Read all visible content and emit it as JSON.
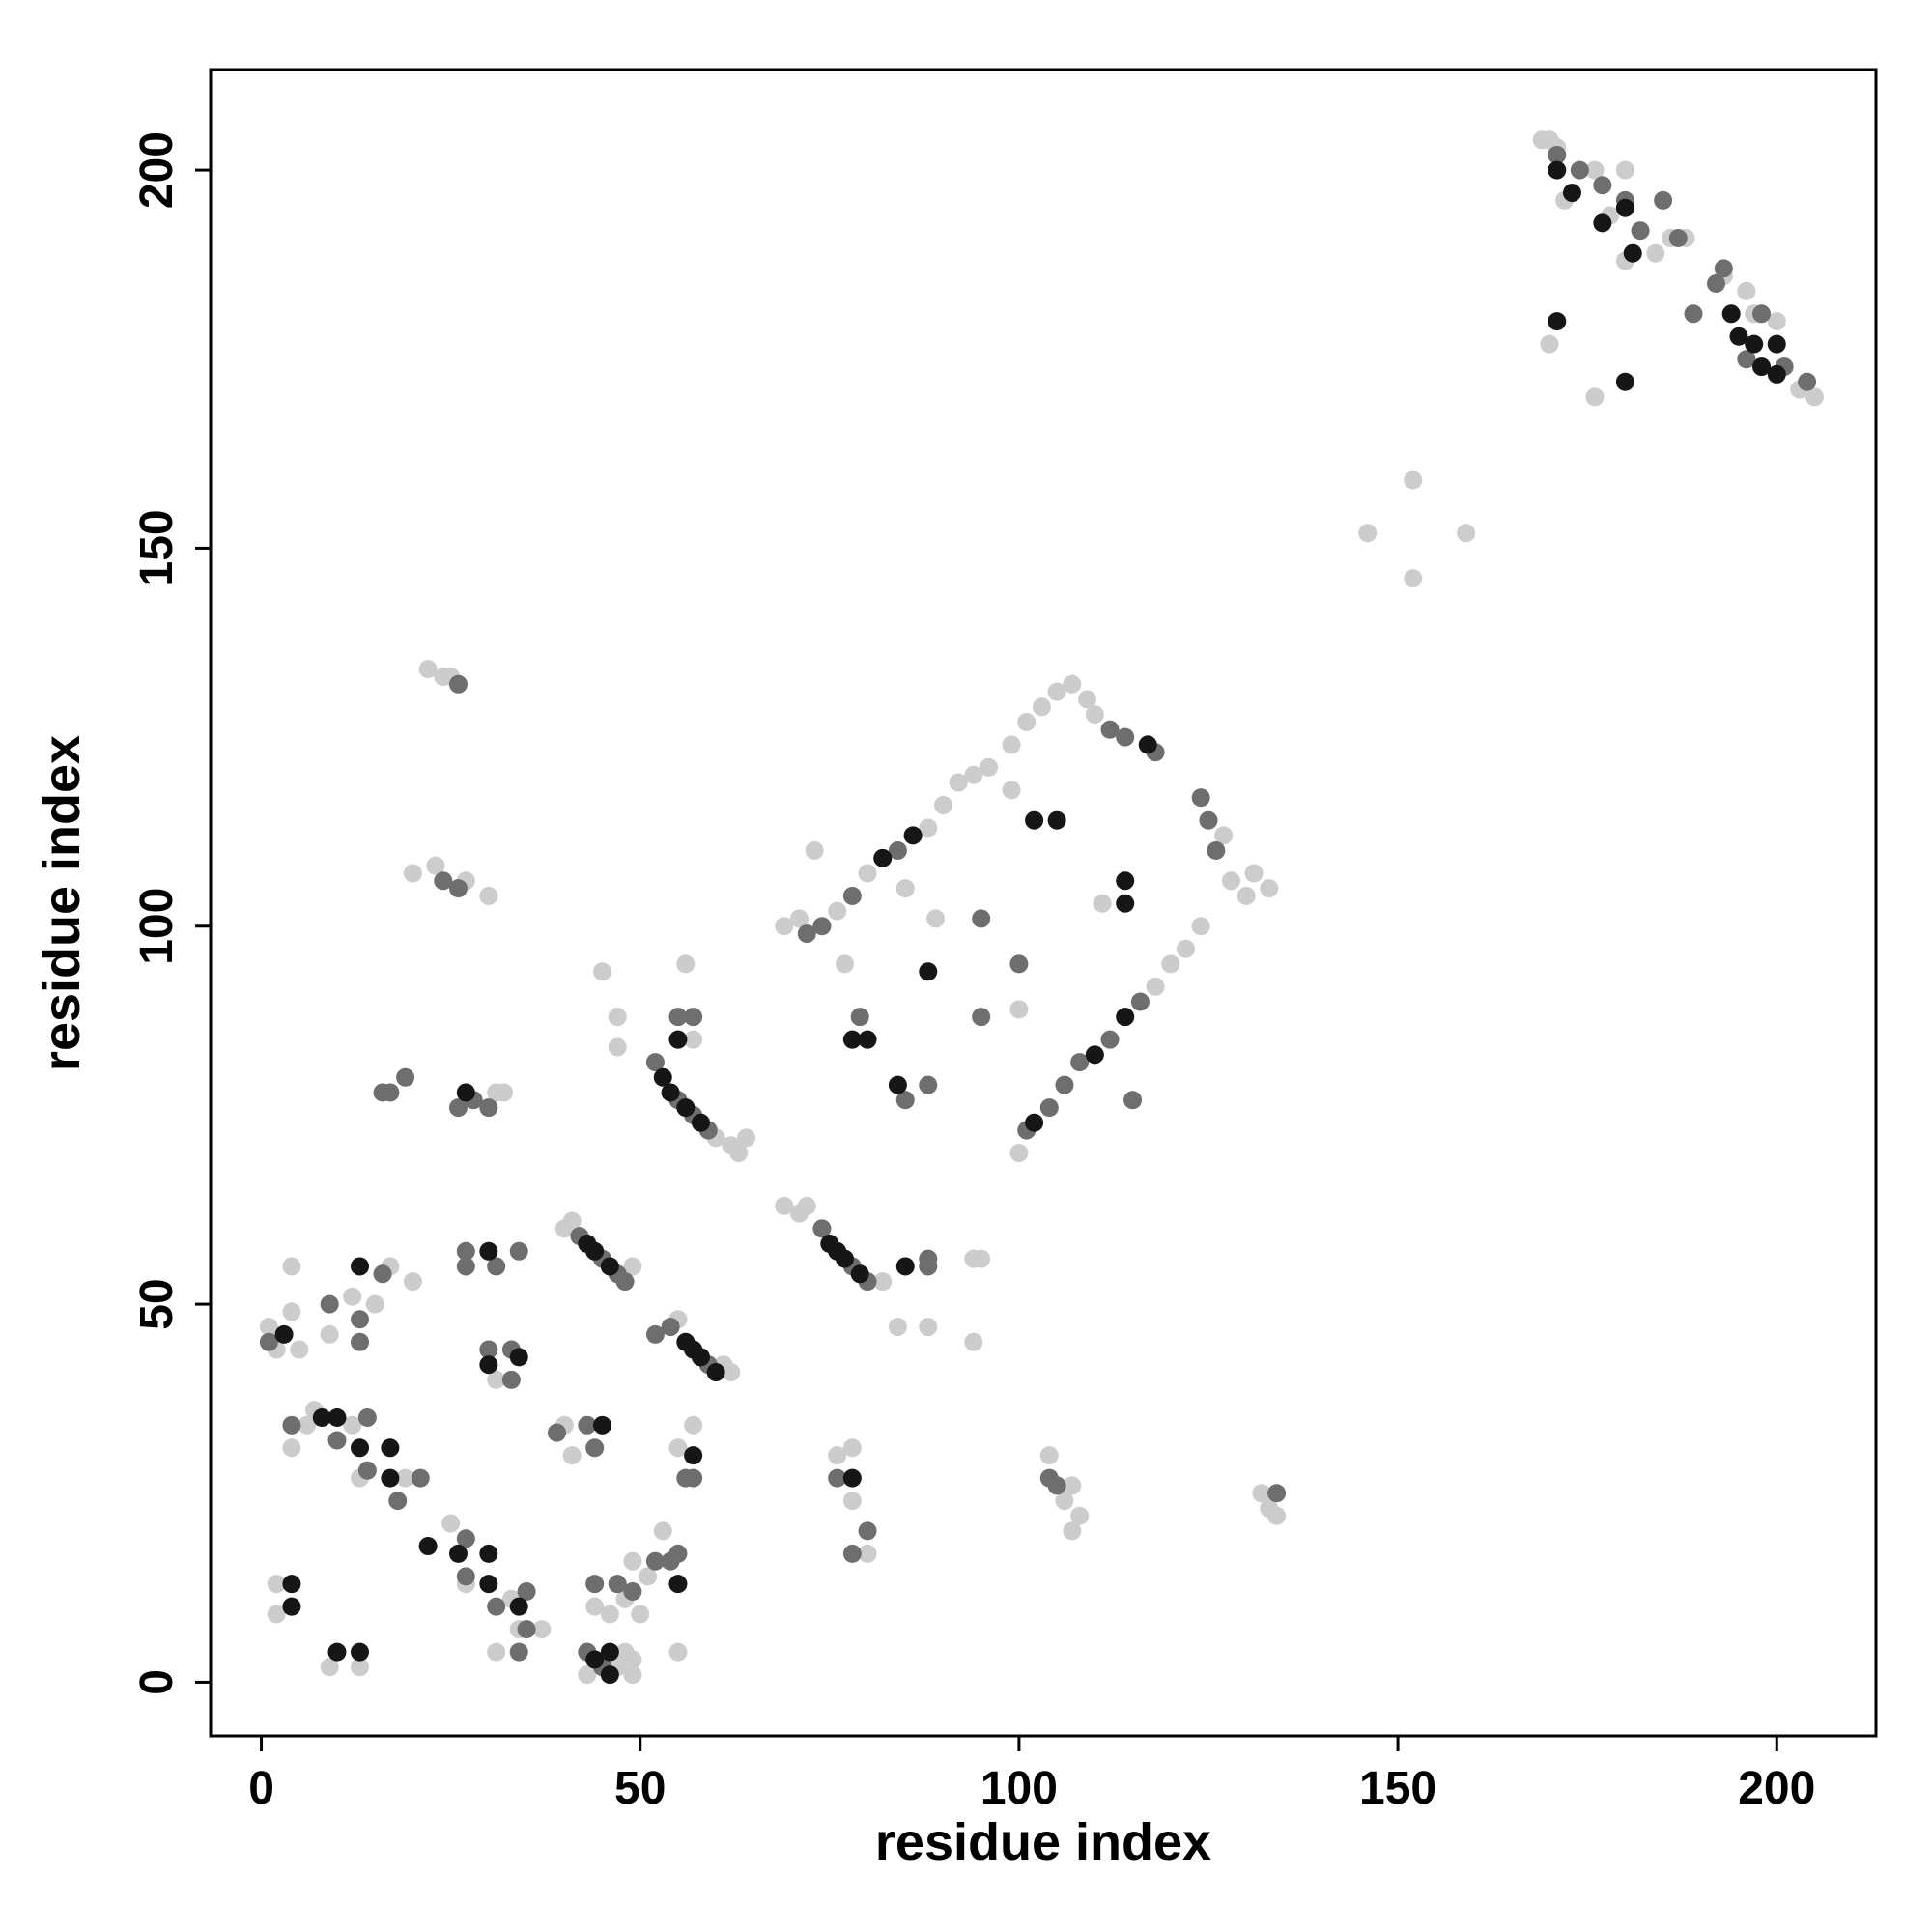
{
  "chart_data": {
    "type": "scatter",
    "xlabel": "residue index",
    "ylabel": "residue index",
    "xlim": [
      -6.7,
      213.1
    ],
    "ylim": [
      -7.1,
      213.3
    ],
    "xticks": [
      0,
      50,
      100,
      150,
      200
    ],
    "yticks": [
      0,
      50,
      100,
      150,
      200
    ],
    "grid": false,
    "series": [
      {
        "color": "#cccccc",
        "x": [
          169,
          170,
          171,
          172,
          176,
          178,
          180,
          184,
          186,
          188,
          193,
          196,
          197,
          200,
          205,
          203,
          170,
          176,
          180,
          146,
          152,
          152,
          159,
          20,
          23,
          27,
          30,
          22,
          24,
          25,
          31,
          32,
          69,
          71,
          76,
          80,
          88,
          90,
          92,
          94,
          96,
          99,
          101,
          103,
          105,
          107,
          109,
          110,
          127,
          128,
          130,
          131,
          133,
          124,
          100,
          118,
          120,
          122,
          77,
          89,
          100,
          99,
          111,
          73,
          85,
          60,
          62,
          63,
          64,
          57,
          56,
          45,
          47,
          47,
          69,
          71,
          72,
          82,
          84,
          88,
          94,
          94,
          95,
          40,
          41,
          49,
          55,
          61,
          62,
          1,
          2,
          4,
          4,
          5,
          9,
          12,
          15,
          17,
          20,
          31,
          4,
          6,
          7,
          12,
          19,
          13,
          40,
          41,
          55,
          57,
          53,
          2,
          2,
          9,
          13,
          25,
          27,
          31,
          33,
          34,
          37,
          43,
          47,
          48,
          49,
          49,
          44,
          46,
          48,
          49,
          50,
          51,
          55,
          76,
          78,
          78,
          80,
          104,
          106,
          107,
          107,
          108,
          132,
          133,
          134
        ],
        "values": [
          204,
          204,
          203,
          196,
          200,
          194,
          200,
          189,
          191,
          191,
          186,
          184,
          181,
          180,
          170,
          171,
          177,
          170,
          188,
          152,
          159,
          146,
          152,
          107,
          108,
          106,
          104,
          134,
          133,
          133,
          78,
          78,
          100,
          101,
          102,
          107,
          113,
          116,
          119,
          120,
          121,
          124,
          127,
          129,
          131,
          132,
          130,
          128,
          112,
          106,
          104,
          107,
          105,
          100,
          70,
          92,
          95,
          97,
          95,
          101,
          89,
          118,
          103,
          110,
          105,
          72,
          71,
          70,
          72,
          85,
          95,
          94,
          88,
          84,
          63,
          62,
          63,
          53,
          47,
          47,
          45,
          56,
          56,
          60,
          61,
          55,
          48,
          42,
          41,
          47,
          44,
          49,
          55,
          44,
          46,
          51,
          50,
          55,
          53,
          40,
          31,
          34,
          36,
          34,
          27,
          27,
          34,
          30,
          31,
          34,
          20,
          13,
          9,
          2,
          2,
          21,
          13,
          4,
          11,
          7,
          7,
          1,
          2,
          4,
          3,
          1,
          10,
          9,
          11,
          16,
          9,
          14,
          4,
          30,
          31,
          24,
          17,
          30,
          24,
          26,
          20,
          22,
          25,
          23,
          22
        ]
      },
      {
        "color": "#6e6e6e",
        "x": [
          171,
          174,
          177,
          180,
          182,
          185,
          187,
          189,
          192,
          193,
          196,
          198,
          201,
          204,
          24,
          26,
          26,
          16,
          19,
          17,
          26,
          28,
          30,
          72,
          74,
          78,
          84,
          112,
          114,
          118,
          124,
          125,
          126,
          101,
          104,
          106,
          108,
          112,
          116,
          115,
          79,
          85,
          88,
          95,
          95,
          100,
          52,
          55,
          57,
          59,
          55,
          57,
          74,
          78,
          80,
          88,
          88,
          42,
          45,
          47,
          48,
          52,
          54,
          59,
          1,
          9,
          13,
          13,
          16,
          27,
          27,
          31,
          34,
          30,
          33,
          33,
          4,
          10,
          14,
          14,
          18,
          21,
          39,
          43,
          44,
          56,
          57,
          27,
          27,
          31,
          35,
          34,
          35,
          43,
          45,
          44,
          47,
          49,
          52,
          55,
          54,
          76,
          78,
          80,
          105,
          104,
          134
        ],
        "values": [
          202,
          200,
          198,
          196,
          192,
          196,
          191,
          181,
          185,
          187,
          175,
          181,
          174,
          172,
          106,
          105,
          132,
          78,
          80,
          78,
          76,
          77,
          76,
          99,
          100,
          104,
          110,
          126,
          125,
          123,
          117,
          114,
          110,
          73,
          76,
          79,
          82,
          85,
          90,
          77,
          88,
          77,
          79,
          88,
          101,
          95,
          82,
          77,
          75,
          73,
          88,
          88,
          60,
          55,
          53,
          55,
          56,
          59,
          56,
          54,
          53,
          46,
          47,
          42,
          45,
          50,
          48,
          45,
          54,
          57,
          55,
          55,
          57,
          44,
          44,
          40,
          34,
          32,
          35,
          28,
          24,
          27,
          33,
          34,
          31,
          27,
          27,
          19,
          14,
          10,
          7,
          4,
          12,
          4,
          2,
          13,
          13,
          12,
          16,
          17,
          16,
          27,
          17,
          20,
          26,
          27,
          25
        ]
      },
      {
        "color": "#161616",
        "x": [
          171,
          173,
          177,
          180,
          181,
          194,
          195,
          197,
          198,
          200,
          200,
          171,
          180,
          27,
          82,
          86,
          117,
          102,
          110,
          114,
          78,
          80,
          84,
          88,
          102,
          105,
          114,
          114,
          53,
          54,
          56,
          58,
          55,
          75,
          76,
          77,
          79,
          85,
          43,
          44,
          46,
          56,
          57,
          58,
          60,
          3,
          13,
          30,
          30,
          34,
          8,
          10,
          13,
          17,
          17,
          45,
          57,
          4,
          4,
          10,
          13,
          22,
          26,
          30,
          30,
          34,
          44,
          46,
          46,
          55,
          78
        ],
        "values": [
          200,
          197,
          193,
          195,
          189,
          181,
          178,
          177,
          174,
          177,
          173,
          180,
          172,
          78,
          109,
          112,
          124,
          74,
          83,
          88,
          85,
          85,
          79,
          94,
          114,
          114,
          106,
          103,
          80,
          78,
          76,
          74,
          85,
          58,
          57,
          56,
          54,
          55,
          58,
          57,
          55,
          45,
          44,
          43,
          41,
          46,
          55,
          57,
          42,
          43,
          35,
          35,
          31,
          31,
          27,
          34,
          30,
          13,
          10,
          4,
          4,
          18,
          17,
          17,
          13,
          10,
          3,
          4,
          1,
          13,
          27
        ]
      }
    ]
  }
}
